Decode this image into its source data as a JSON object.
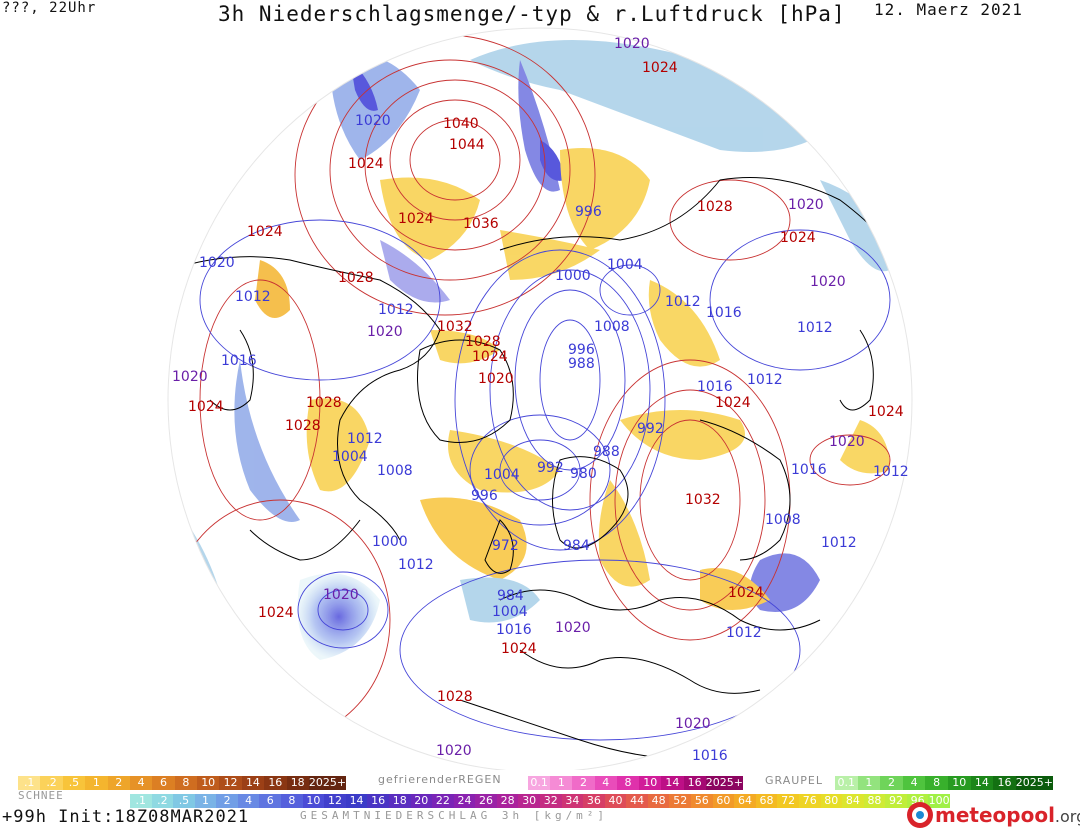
{
  "header": {
    "left": "???, 22Uhr",
    "title": "3h Niederschlagsmenge/-typ & r.Luftdruck [hPa]",
    "date": "12. Maerz 2021"
  },
  "footer": {
    "run": "+99h  Init:18Z08MAR2021",
    "logo": "meteopool",
    "logo_suffix": ".org"
  },
  "colors": {
    "high_label": "#b40000",
    "low_label": "#3b3bd6",
    "mid_label": "#6a1fa8",
    "land_outline": "#000000",
    "isobar_red": "#c83232",
    "isobar_blue": "#4646d8"
  },
  "pressure_labels": [
    {
      "text": "1020",
      "c": "mid"
    },
    {
      "text": "1024",
      "c": "high"
    },
    {
      "text": "1020",
      "c": "low"
    },
    {
      "text": "1040",
      "c": "high"
    },
    {
      "text": "1044",
      "c": "high"
    },
    {
      "text": "1024",
      "c": "high"
    },
    {
      "text": "1024",
      "c": "high"
    },
    {
      "text": "1036",
      "c": "high"
    },
    {
      "text": "996",
      "c": "low"
    },
    {
      "text": "1028",
      "c": "high"
    },
    {
      "text": "1020",
      "c": "mid"
    },
    {
      "text": "1024",
      "c": "high"
    },
    {
      "text": "1024",
      "c": "high"
    },
    {
      "text": "1020",
      "c": "low"
    },
    {
      "text": "1028",
      "c": "high"
    },
    {
      "text": "1000",
      "c": "low"
    },
    {
      "text": "1004",
      "c": "low"
    },
    {
      "text": "1012",
      "c": "low"
    },
    {
      "text": "1012",
      "c": "low"
    },
    {
      "text": "1020",
      "c": "mid"
    },
    {
      "text": "1012",
      "c": "low"
    },
    {
      "text": "1016",
      "c": "low"
    },
    {
      "text": "1020",
      "c": "mid"
    },
    {
      "text": "1032",
      "c": "high"
    },
    {
      "text": "1008",
      "c": "low"
    },
    {
      "text": "1012",
      "c": "low"
    },
    {
      "text": "1028",
      "c": "high"
    },
    {
      "text": "996",
      "c": "low"
    },
    {
      "text": "1024",
      "c": "high"
    },
    {
      "text": "988",
      "c": "low"
    },
    {
      "text": "1016",
      "c": "low"
    },
    {
      "text": "1020",
      "c": "mid"
    },
    {
      "text": "1012",
      "c": "low"
    },
    {
      "text": "1024",
      "c": "high"
    },
    {
      "text": "1016",
      "c": "low"
    },
    {
      "text": "1020",
      "c": "high"
    },
    {
      "text": "1028",
      "c": "high"
    },
    {
      "text": "1024",
      "c": "high"
    },
    {
      "text": "1028",
      "c": "high"
    },
    {
      "text": "992",
      "c": "low"
    },
    {
      "text": "1024",
      "c": "high"
    },
    {
      "text": "1012",
      "c": "low"
    },
    {
      "text": "988",
      "c": "low"
    },
    {
      "text": "1020",
      "c": "mid"
    },
    {
      "text": "1004",
      "c": "low"
    },
    {
      "text": "1008",
      "c": "low"
    },
    {
      "text": "992",
      "c": "low"
    },
    {
      "text": "980",
      "c": "low"
    },
    {
      "text": "1004",
      "c": "low"
    },
    {
      "text": "1016",
      "c": "low"
    },
    {
      "text": "1012",
      "c": "low"
    },
    {
      "text": "996",
      "c": "low"
    },
    {
      "text": "1032",
      "c": "high"
    },
    {
      "text": "1008",
      "c": "low"
    },
    {
      "text": "1000",
      "c": "low"
    },
    {
      "text": "972",
      "c": "low"
    },
    {
      "text": "984",
      "c": "low"
    },
    {
      "text": "1012",
      "c": "low"
    },
    {
      "text": "1012",
      "c": "low"
    },
    {
      "text": "1020",
      "c": "mid"
    },
    {
      "text": "1024",
      "c": "high"
    },
    {
      "text": "984",
      "c": "low"
    },
    {
      "text": "1004",
      "c": "low"
    },
    {
      "text": "1016",
      "c": "low"
    },
    {
      "text": "1020",
      "c": "mid"
    },
    {
      "text": "1024",
      "c": "high"
    },
    {
      "text": "1012",
      "c": "low"
    },
    {
      "text": "1024",
      "c": "high"
    },
    {
      "text": "1028",
      "c": "high"
    },
    {
      "text": "1020",
      "c": "mid"
    },
    {
      "text": "1016",
      "c": "low"
    },
    {
      "text": "1020",
      "c": "mid"
    }
  ],
  "legends": {
    "snow": {
      "title": "SCHNEE",
      "values": [
        ".1",
        ".2",
        ".5",
        "1",
        "2",
        "4",
        "6",
        "8",
        "10",
        "12",
        "14",
        "16",
        "18",
        "2025+"
      ],
      "colors": [
        "#fde28a",
        "#fbd25a",
        "#f8c43a",
        "#f4b52e",
        "#eea52a",
        "#e69227",
        "#dc7f23",
        "#cf6d20",
        "#bf5c1c",
        "#ae4d19",
        "#9c4016",
        "#8a3613",
        "#772d11",
        "#642510"
      ]
    },
    "rain": {
      "title": "gefrierenderREGEN",
      "values": [
        "0.1",
        "1",
        "2",
        "4",
        "8",
        "10",
        "14",
        "16",
        "2025+"
      ],
      "colors": [
        "#f7a6e0",
        "#f58bd5",
        "#f06bc8",
        "#e94cba",
        "#df31ab",
        "#d11c99",
        "#bd0f86",
        "#a50973",
        "#8c0560"
      ]
    },
    "graupel": {
      "title": "GRAUPEL",
      "values": [
        "0.1",
        "1",
        "2",
        "4",
        "8",
        "10",
        "14",
        "16",
        "2025+"
      ],
      "colors": [
        "#b9f0a8",
        "#93e37e",
        "#6fd45a",
        "#4fc43e",
        "#38b02c",
        "#279b21",
        "#1c8619",
        "#137012",
        "#0b5b0c"
      ]
    },
    "total": {
      "title": "GESAMTNIEDERSCHLAG 3h [kg/m²]",
      "values": [
        ".1",
        ".2",
        ".5",
        "1",
        "2",
        "4",
        "6",
        "8",
        "10",
        "12",
        "14",
        "16",
        "18",
        "20",
        "22",
        "24",
        "26",
        "28",
        "30",
        "32",
        "34",
        "36",
        "40",
        "44",
        "48",
        "52",
        "56",
        "60",
        "64",
        "68",
        "72",
        "76",
        "80",
        "84",
        "88",
        "92",
        "96",
        "100"
      ],
      "colors": [
        "#a0e6e0",
        "#8fd9e2",
        "#80c8e4",
        "#7ab3e6",
        "#719ee6",
        "#6889e4",
        "#5f74e0",
        "#5560dc",
        "#4b4cd6",
        "#4240cc",
        "#3b3bc8",
        "#4a34c4",
        "#5a2ec0",
        "#6a28bc",
        "#7a24b6",
        "#8a22b0",
        "#9a22a6",
        "#aa229c",
        "#b82690",
        "#c42c82",
        "#ce3474",
        "#d63e66",
        "#de4c58",
        "#e45a4c",
        "#e86a40",
        "#ec7a36",
        "#f08a2e",
        "#f29a28",
        "#f4aa24",
        "#f4ba22",
        "#f2c822",
        "#eed424",
        "#e6de28",
        "#dce62e",
        "#cfeb34",
        "#c0ee3a",
        "#b0f040",
        "#a0f046"
      ]
    }
  }
}
